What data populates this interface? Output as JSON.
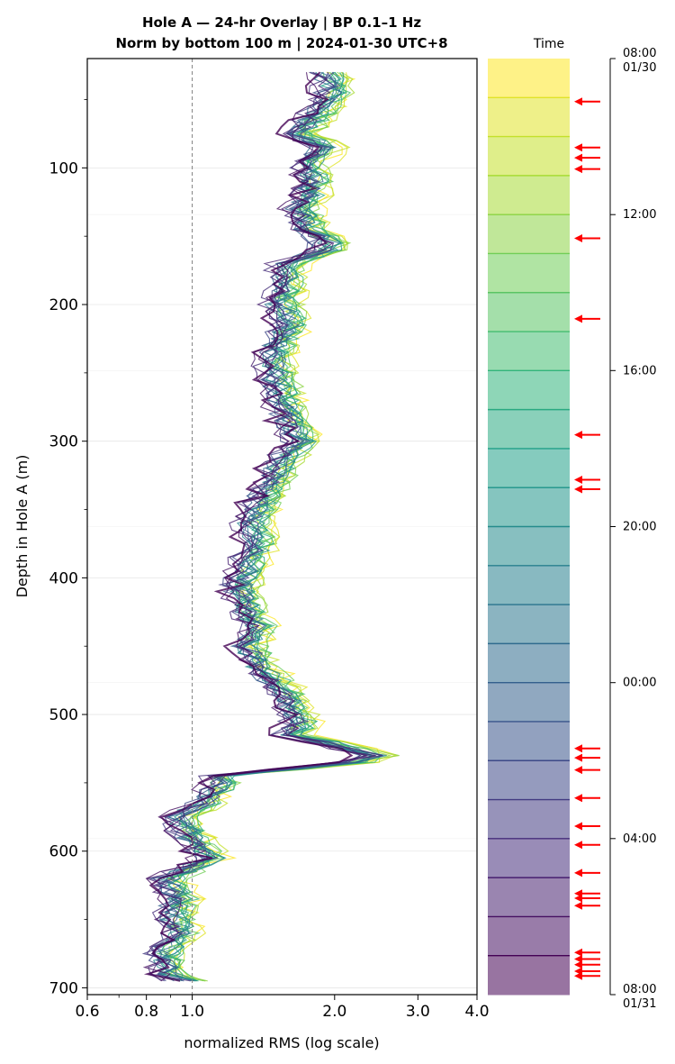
{
  "chart_data": {
    "type": "line",
    "title_line1": "Hole A — 24-hr Overlay  |  BP 0.1–1 Hz",
    "title_line2": "Norm by bottom 100 m  |  2024-01-30 UTC+8",
    "xlabel": "normalized RMS  (log scale)",
    "ylabel": "Depth in Hole A (m)",
    "x_scale": "log",
    "xlim": [
      0.6,
      4.0
    ],
    "ylim": [
      705,
      20
    ],
    "y_inverted": true,
    "x_ticks": [
      0.6,
      0.8,
      1.0,
      2.0,
      3.0,
      4.0
    ],
    "x_tick_labels": [
      "0.6",
      "0.8",
      "1.0",
      "2.0",
      "3.0",
      "4.0"
    ],
    "y_ticks": [
      100,
      200,
      300,
      400,
      500,
      600,
      700
    ],
    "y_tick_labels": [
      "100",
      "200",
      "300",
      "400",
      "500",
      "600",
      "700"
    ],
    "reference_line": {
      "x": 1.0,
      "style": "dashed",
      "color": "#808080"
    },
    "grid": true,
    "colormap": "viridis",
    "hourly_curves": 24,
    "depth_profile": {
      "depth": [
        30,
        45,
        60,
        75,
        85,
        100,
        115,
        130,
        145,
        158,
        170,
        185,
        200,
        215,
        230,
        245,
        260,
        275,
        290,
        300,
        315,
        330,
        345,
        360,
        375,
        390,
        405,
        420,
        435,
        450,
        465,
        480,
        495,
        505,
        515,
        520,
        527,
        532,
        540,
        545,
        560,
        575,
        590,
        605,
        620,
        635,
        645,
        660,
        675,
        690,
        697
      ],
      "rms": [
        1.95,
        1.98,
        1.85,
        1.7,
        1.92,
        1.78,
        1.82,
        1.72,
        1.78,
        2.0,
        1.6,
        1.58,
        1.55,
        1.62,
        1.52,
        1.5,
        1.55,
        1.58,
        1.65,
        1.7,
        1.55,
        1.5,
        1.4,
        1.35,
        1.38,
        1.32,
        1.28,
        1.3,
        1.38,
        1.32,
        1.4,
        1.55,
        1.65,
        1.7,
        1.62,
        1.9,
        2.3,
        2.6,
        1.6,
        1.15,
        1.12,
        0.95,
        1.0,
        1.1,
        0.9,
        0.95,
        0.92,
        0.95,
        0.88,
        0.9,
        1.0
      ]
    },
    "colorbar": {
      "label": "Time",
      "ticks": [
        {
          "label": "08:00",
          "sub": "01/30",
          "frac": 0.0
        },
        {
          "label": "12:00",
          "sub": "",
          "frac": 0.1667
        },
        {
          "label": "16:00",
          "sub": "",
          "frac": 0.3333
        },
        {
          "label": "20:00",
          "sub": "",
          "frac": 0.5
        },
        {
          "label": "00:00",
          "sub": "",
          "frac": 0.6667
        },
        {
          "label": "04:00",
          "sub": "",
          "frac": 0.8333
        },
        {
          "label": "08:00",
          "sub": "01/31",
          "frac": 1.0
        }
      ],
      "arrow_color": "#ff0000",
      "arrow_positions": [
        0.046,
        0.095,
        0.106,
        0.118,
        0.192,
        0.278,
        0.402,
        0.45,
        0.46,
        0.737,
        0.747,
        0.76,
        0.79,
        0.82,
        0.84,
        0.87,
        0.892,
        0.897,
        0.905,
        0.955,
        0.962,
        0.968,
        0.975,
        0.98
      ]
    }
  }
}
